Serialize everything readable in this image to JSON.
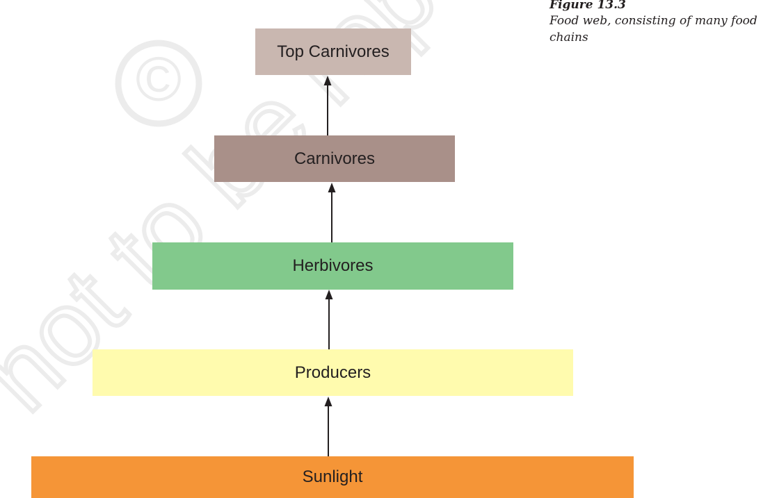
{
  "watermark": {
    "copyright_symbol": "©",
    "text": "not to be republished",
    "color": "#e8e8e8"
  },
  "figure": {
    "number": "Figure 13.3",
    "caption": "Food web, consisting of many food chains"
  },
  "levels": [
    {
      "key": "top-carnivores",
      "label": "Top Carnivores",
      "color": "#c9b7b0"
    },
    {
      "key": "carnivores",
      "label": "Carnivores",
      "color": "#a99089"
    },
    {
      "key": "herbivores",
      "label": "Herbivores",
      "color": "#82c98c"
    },
    {
      "key": "producers",
      "label": "Producers",
      "color": "#fffbae"
    },
    {
      "key": "sunlight",
      "label": "Sunlight",
      "color": "#f59537"
    }
  ]
}
